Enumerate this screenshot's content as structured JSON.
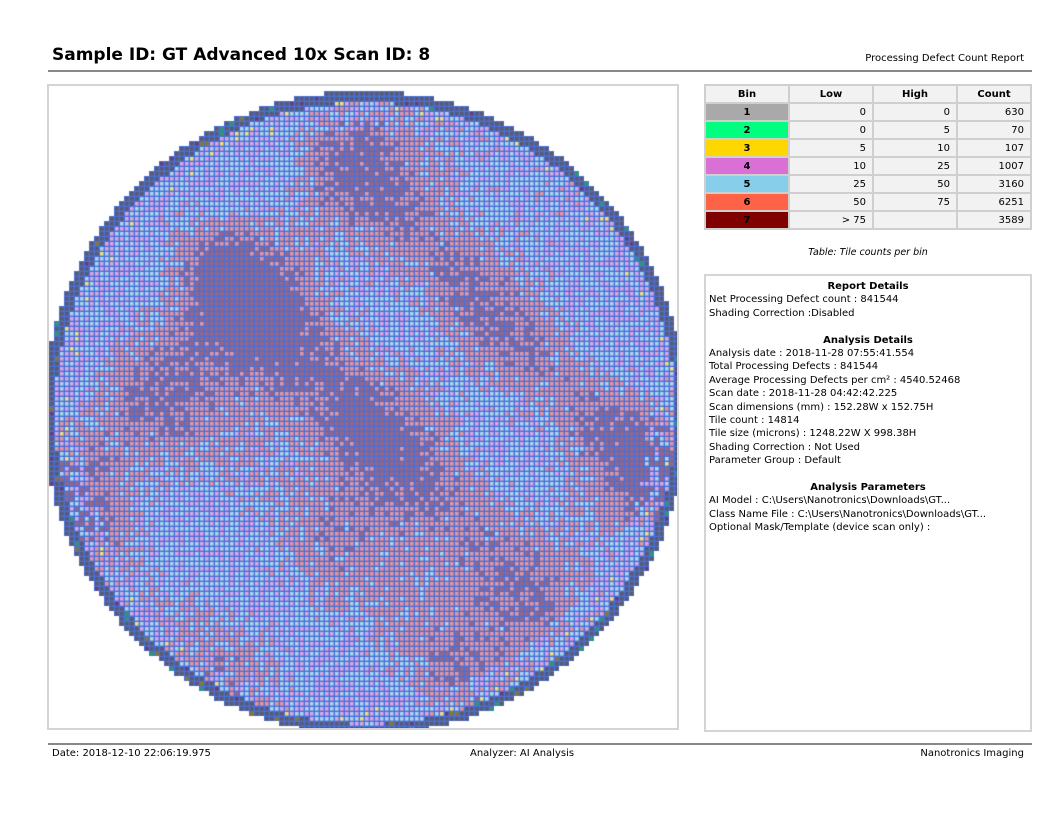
{
  "header": {
    "title": "Sample ID: GT Advanced 10x  Scan ID: 8",
    "report_type": "Processing Defect Count Report"
  },
  "bin_table": {
    "columns": [
      "Bin",
      "Low",
      "High",
      "Count"
    ],
    "rows": [
      {
        "bin": "1",
        "low": "0",
        "high": "0",
        "count": "630",
        "color": "#a9a9a9"
      },
      {
        "bin": "2",
        "low": "0",
        "high": "5",
        "count": "70",
        "color": "#00ff7f"
      },
      {
        "bin": "3",
        "low": "5",
        "high": "10",
        "count": "107",
        "color": "#ffd700"
      },
      {
        "bin": "4",
        "low": "10",
        "high": "25",
        "count": "1007",
        "color": "#da70d6"
      },
      {
        "bin": "5",
        "low": "25",
        "high": "50",
        "count": "3160",
        "color": "#87ceeb"
      },
      {
        "bin": "6",
        "low": "50",
        "high": "75",
        "count": "6251",
        "color": "#ff6347"
      },
      {
        "bin": "7",
        "low": "> 75",
        "high": "",
        "count": "3589",
        "color": "#800000"
      }
    ],
    "caption": "Table: Tile counts per bin"
  },
  "report_details": {
    "title": "Report Details",
    "lines": [
      "Net Processing Defect count :  841544",
      "Shading Correction :Disabled"
    ]
  },
  "analysis_details": {
    "title": "Analysis Details",
    "lines": [
      "Analysis date :  2018-11-28 07:55:41.554",
      "Total Processing Defects :  841544",
      "Average Processing Defects per cm² :  4540.52468",
      "Scan date :  2018-11-28 04:42:42.225",
      "Scan dimensions (mm) :  152.28W x 152.75H",
      "Tile count :  14814",
      "Tile size (microns) :  1248.22W X 998.38H",
      "Shading Correction : Not Used",
      "Parameter Group :  Default"
    ]
  },
  "analysis_parameters": {
    "title": "Analysis Parameters",
    "lines": [
      "AI Model :   C:\\Users\\Nanotronics\\Downloads\\GT...",
      "Class Name File :   C:\\Users\\Nanotronics\\Downloads\\GT...",
      "Optional Mask/Template (device scan only) :"
    ]
  },
  "footer": {
    "date": "Date: 2018-12-10 22:06:19.975",
    "analyzer": "Analyzer: AI Analysis",
    "brand": "Nanotronics Imaging"
  },
  "wafer_map": {
    "grid_line_color": "#4a6fd8",
    "edge_tile_color": "#5a5a6e",
    "overlay_tints": {
      "bin5": "#aad4ec",
      "bin4": "#d9a6e6",
      "bin6": "#e8959a",
      "bin7": "#9a6680",
      "bin3": "#f0e07a",
      "bin2": "#2a9a6a"
    }
  }
}
